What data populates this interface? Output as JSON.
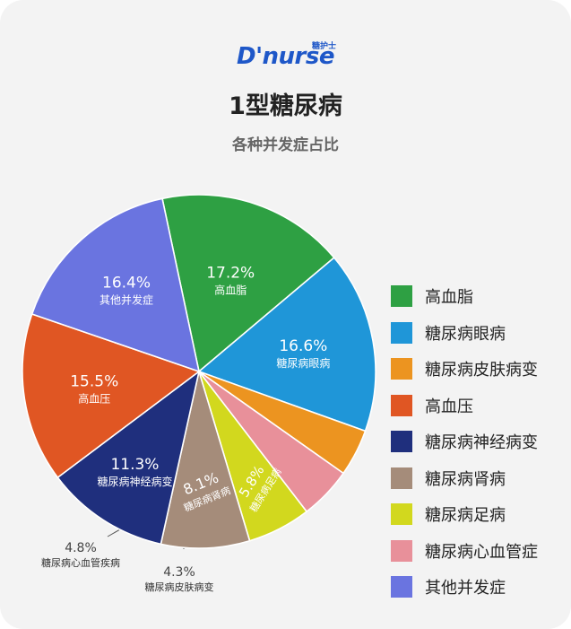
{
  "logo": {
    "text": "D'nurse",
    "cn": "糖护士"
  },
  "chart_data": {
    "type": "pie",
    "title": "1型糖尿病",
    "subtitle": "各种并发症占比",
    "legend_position": "right",
    "slices": [
      {
        "label": "高血脂",
        "value": 17.2,
        "value_label": "17.2%",
        "color": "#2ea043"
      },
      {
        "label": "糖尿病眼病",
        "value": 16.6,
        "value_label": "16.6%",
        "color": "#1f96d8"
      },
      {
        "label": "糖尿病皮肤病变",
        "value": 4.3,
        "value_label": "4.3%",
        "color": "#ec9420"
      },
      {
        "label": "糖尿病心血管疾病",
        "value": 4.8,
        "value_label": "4.8%",
        "color": "#e8909a"
      },
      {
        "label": "糖尿病足病",
        "value": 5.8,
        "value_label": "5.8%",
        "color": "#d2d81e"
      },
      {
        "label": "糖尿病肾病",
        "value": 8.1,
        "value_label": "8.1%",
        "color": "#a58c7a"
      },
      {
        "label": "糖尿病神经病变",
        "value": 11.3,
        "value_label": "11.3%",
        "color": "#1f2f7d"
      },
      {
        "label": "高血压",
        "value": 15.5,
        "value_label": "15.5%",
        "color": "#e05623"
      },
      {
        "label": "其他并发症",
        "value": 16.4,
        "value_label": "16.4%",
        "color": "#6a74e0"
      }
    ],
    "legend": [
      {
        "label": "高血脂",
        "color": "#2ea043"
      },
      {
        "label": "糖尿病眼病",
        "color": "#1f96d8"
      },
      {
        "label": "糖尿病皮肤病变",
        "color": "#ec9420"
      },
      {
        "label": "高血压",
        "color": "#e05623"
      },
      {
        "label": "糖尿病神经病变",
        "color": "#1f2f7d"
      },
      {
        "label": "糖尿病肾病",
        "color": "#a58c7a"
      },
      {
        "label": "糖尿病足病",
        "color": "#d2d81e"
      },
      {
        "label": "糖尿病心血管症",
        "color": "#e8909a"
      },
      {
        "label": "其他并发症",
        "color": "#6a74e0"
      }
    ]
  }
}
